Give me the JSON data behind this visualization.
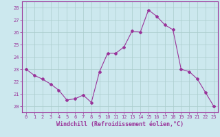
{
  "x": [
    0,
    1,
    2,
    3,
    4,
    5,
    6,
    7,
    8,
    9,
    10,
    11,
    12,
    13,
    14,
    15,
    16,
    17,
    18,
    19,
    20,
    21,
    22,
    23
  ],
  "y": [
    23.0,
    22.5,
    22.2,
    21.8,
    21.3,
    20.5,
    20.6,
    20.9,
    20.3,
    22.8,
    24.3,
    24.3,
    24.8,
    26.1,
    26.0,
    27.8,
    27.3,
    26.6,
    26.2,
    23.0,
    22.8,
    22.2,
    21.1,
    20.0
  ],
  "line_color": "#993399",
  "marker": "D",
  "marker_size": 2,
  "bg_color": "#cce8ee",
  "grid_color": "#aacccc",
  "xlabel": "Windchill (Refroidissement éolien,°C)",
  "xlim": [
    -0.5,
    23.5
  ],
  "ylim": [
    19.5,
    28.5
  ],
  "yticks": [
    20,
    21,
    22,
    23,
    24,
    25,
    26,
    27,
    28
  ],
  "xticks": [
    0,
    1,
    2,
    3,
    4,
    5,
    6,
    7,
    8,
    9,
    10,
    11,
    12,
    13,
    14,
    15,
    16,
    17,
    18,
    19,
    20,
    21,
    22,
    23
  ],
  "tick_color": "#993399",
  "label_color": "#993399",
  "spine_color": "#993399",
  "font_size_ticks": 5,
  "font_size_xlabel": 6
}
